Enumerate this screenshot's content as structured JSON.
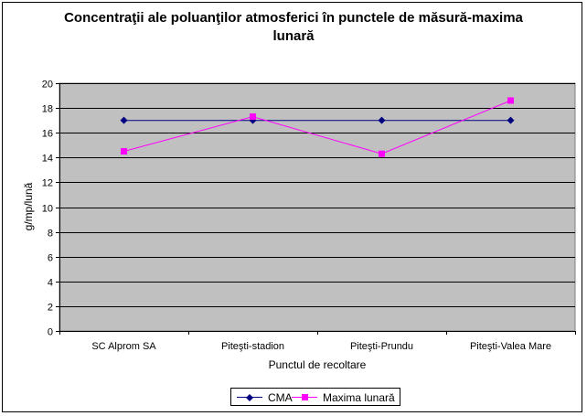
{
  "chart_data": {
    "type": "line",
    "title_line1": "Concentraţii ale poluanţilor atmosferici în punctele de măsură-maxima",
    "title_line2": "lunară",
    "xlabel": "Punctul de recoltare",
    "ylabel": "g/mp/lună",
    "ylim": [
      0,
      20
    ],
    "yticks": [
      "0",
      "2",
      "4",
      "6",
      "8",
      "10",
      "12",
      "14",
      "16",
      "18",
      "20"
    ],
    "grid": true,
    "plot_background": "#c0c0c0",
    "legend_position": "bottom",
    "categories": [
      "SC Alprom SA",
      "Piteşti-stadion",
      "Piteşti-Prundu",
      "Piteşti-Valea Mare"
    ],
    "series": [
      {
        "name": "CMA",
        "color": "#000080",
        "marker": "diamond",
        "values": [
          17,
          17,
          17,
          17
        ]
      },
      {
        "name": "Maxima lunară",
        "color": "#ff00ff",
        "marker": "square",
        "values": [
          14.5,
          17.3,
          14.3,
          18.6
        ]
      }
    ]
  }
}
